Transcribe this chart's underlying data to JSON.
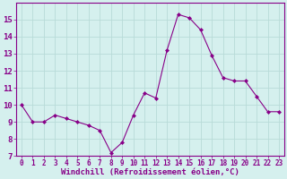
{
  "x": [
    0,
    1,
    2,
    3,
    4,
    5,
    6,
    7,
    8,
    9,
    10,
    11,
    12,
    13,
    14,
    15,
    16,
    17,
    18,
    19,
    20,
    21,
    22,
    23
  ],
  "y": [
    10.0,
    9.0,
    9.0,
    9.4,
    9.2,
    9.0,
    8.8,
    8.5,
    7.2,
    7.8,
    9.4,
    10.7,
    10.4,
    13.2,
    15.3,
    15.1,
    14.4,
    12.9,
    11.6,
    11.4,
    11.4,
    10.5,
    9.6,
    9.6
  ],
  "line_color": "#880088",
  "marker": "D",
  "marker_size": 2,
  "bg_color": "#d5f0ee",
  "grid_color": "#b8dbd8",
  "xlabel": "Windchill (Refroidissement éolien,°C)",
  "xlabel_color": "#880088",
  "tick_color": "#880088",
  "axis_color": "#880088",
  "ylim": [
    7,
    16
  ],
  "xlim": [
    -0.5,
    23.5
  ],
  "yticks": [
    7,
    8,
    9,
    10,
    11,
    12,
    13,
    14,
    15
  ],
  "xticks": [
    0,
    1,
    2,
    3,
    4,
    5,
    6,
    7,
    8,
    9,
    10,
    11,
    12,
    13,
    14,
    15,
    16,
    17,
    18,
    19,
    20,
    21,
    22,
    23
  ],
  "tick_fontsize": 5.5,
  "xlabel_fontsize": 6.5,
  "ytick_fontsize": 6.5
}
